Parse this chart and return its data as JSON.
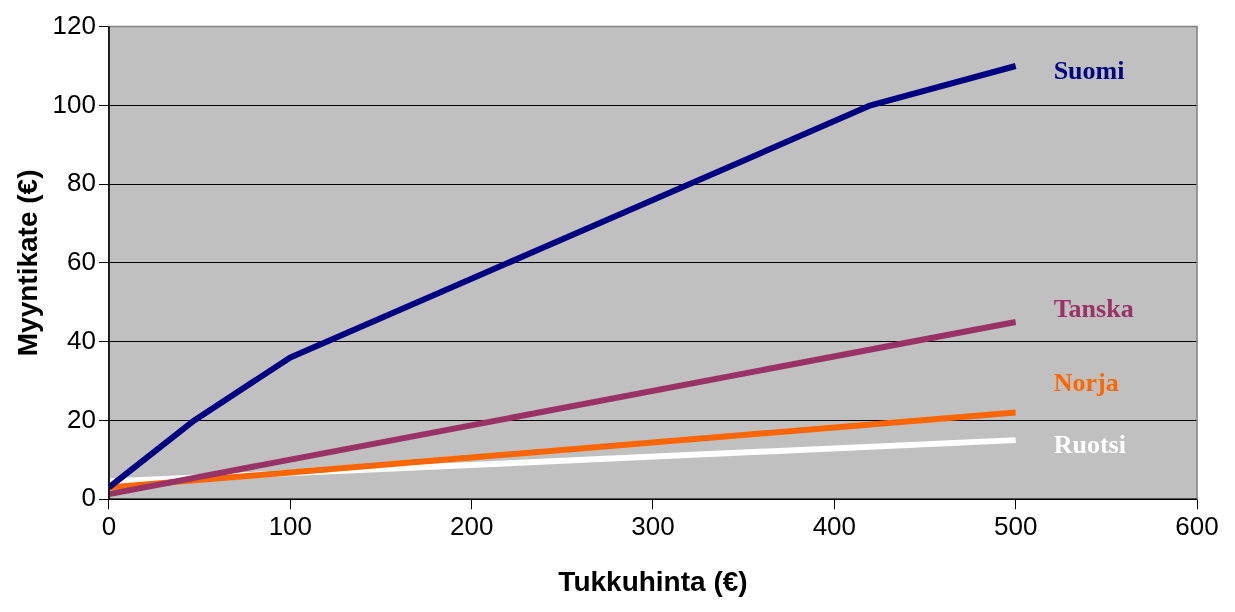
{
  "chart_data": {
    "type": "line",
    "xlabel": "Tukkuhinta (€)",
    "ylabel": "Myyntikate (€)",
    "xlim": [
      0,
      600
    ],
    "xticks": [
      0,
      100,
      200,
      300,
      400,
      500,
      600
    ],
    "ylim": [
      0,
      120
    ],
    "yticks": [
      0,
      20,
      40,
      60,
      80,
      100,
      120
    ],
    "grid": "y",
    "legend": false,
    "marker": "none",
    "line_style": "solid",
    "series": [
      {
        "name": "Suomi",
        "color": "#000080",
        "x": [
          0,
          47,
          100,
          420,
          500
        ],
        "values": [
          3,
          20,
          36,
          100,
          110
        ]
      },
      {
        "name": "Tanska",
        "color": "#993366",
        "x": [
          0,
          500
        ],
        "values": [
          1.3,
          45
        ]
      },
      {
        "name": "Norja",
        "color": "#ff6600",
        "x": [
          0,
          500
        ],
        "values": [
          3,
          22
        ]
      },
      {
        "name": "Ruotsi",
        "color": "#ffffff",
        "x": [
          0,
          500
        ],
        "values": [
          4.5,
          15
        ]
      }
    ]
  }
}
